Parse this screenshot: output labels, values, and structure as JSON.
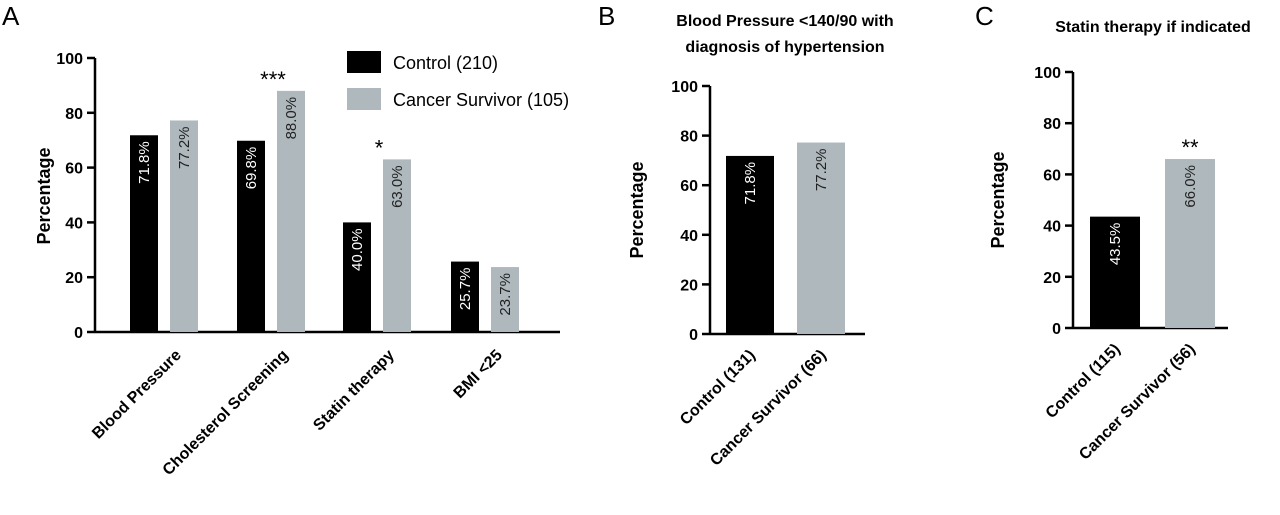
{
  "chart_data": [
    {
      "panel": "A",
      "type": "bar",
      "title": "",
      "ylabel": "Percentage",
      "ylim": [
        0,
        100
      ],
      "yticks": [
        0,
        20,
        40,
        60,
        80,
        100
      ],
      "categories": [
        "Blood Pressure",
        "Cholesterol Screening",
        "Statin therapy",
        "BMI <25"
      ],
      "series": [
        {
          "name": "Control (210)",
          "color": "#000000",
          "values": [
            71.8,
            69.8,
            40.0,
            25.7
          ],
          "labels": [
            "71.8%",
            "69.8%",
            "40.0%",
            "25.7%"
          ]
        },
        {
          "name": "Cancer Survivor (105)",
          "color": "#aeb8bd",
          "values": [
            77.2,
            88.0,
            63.0,
            23.7
          ],
          "labels": [
            "77.2%",
            "88.0%",
            "63.0%",
            "23.7%"
          ]
        }
      ],
      "significance": [
        "",
        "***",
        "*",
        ""
      ],
      "legend": "top-right"
    },
    {
      "panel": "B",
      "type": "bar",
      "title": "Blood Pressure <140/90 with diagnosis of hypertension",
      "ylabel": "Percentage",
      "ylim": [
        0,
        100
      ],
      "yticks": [
        0,
        20,
        40,
        60,
        80,
        100
      ],
      "categories": [
        "Control (131)",
        "Cancer Survivor (66)"
      ],
      "values": [
        71.8,
        77.2
      ],
      "labels": [
        "71.8%",
        "77.2%"
      ],
      "colors": [
        "#000000",
        "#aeb8bd"
      ],
      "significance": [
        "",
        ""
      ]
    },
    {
      "panel": "C",
      "type": "bar",
      "title": "Statin therapy if indicated",
      "ylabel": "Percentage",
      "ylim": [
        0,
        100
      ],
      "yticks": [
        0,
        20,
        40,
        60,
        80,
        100
      ],
      "categories": [
        "Control (115)",
        "Cancer Survivor (56)"
      ],
      "values": [
        43.5,
        66.0
      ],
      "labels": [
        "43.5%",
        "66.0%"
      ],
      "colors": [
        "#000000",
        "#aeb8bd"
      ],
      "significance": [
        "",
        "**"
      ]
    }
  ]
}
